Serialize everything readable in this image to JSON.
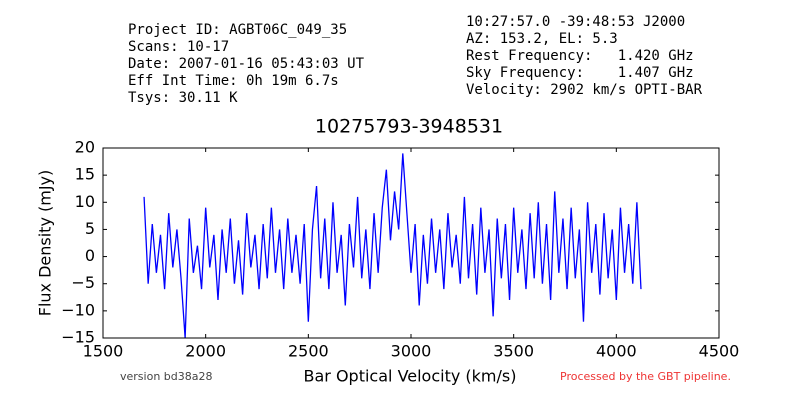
{
  "header": {
    "left": [
      "Project ID: AGBT06C_049_35",
      "Scans: 10-17",
      "Date: 2007-01-16 05:43:03 UT",
      "Eff Int Time: 0h 19m 6.7s",
      "Tsys: 30.11 K"
    ],
    "right": [
      "10:27:57.0 -39:48:53 J2000",
      "AZ: 153.2, EL: 5.3",
      "Rest Frequency:   1.420 GHz",
      "Sky Frequency:    1.407 GHz",
      "Velocity: 2902 km/s OPTI-BAR"
    ]
  },
  "footer": {
    "version": "version bd38a28",
    "processed": "Processed by the GBT pipeline."
  },
  "chart_data": {
    "type": "line",
    "title": "10275793-3948531",
    "x_label": "Bar Optical Velocity (km/s)",
    "y_label": "Flux Density (mJy)",
    "color": "#0000ff",
    "grid": false,
    "xlim": [
      1500,
      4500
    ],
    "xticks": [
      1500,
      2000,
      2500,
      3000,
      3500,
      4000,
      4500
    ],
    "ylim": [
      -15,
      20
    ],
    "yticks": [
      {
        "value": -15,
        "label": "−15"
      },
      {
        "value": -10,
        "label": "−10"
      },
      {
        "value": -5,
        "label": "−5"
      },
      0,
      5,
      10,
      15,
      20
    ],
    "x": [
      1700,
      1720,
      1740,
      1760,
      1780,
      1800,
      1820,
      1840,
      1860,
      1880,
      1900,
      1920,
      1940,
      1960,
      1980,
      2000,
      2020,
      2040,
      2060,
      2080,
      2100,
      2120,
      2140,
      2160,
      2180,
      2200,
      2220,
      2240,
      2260,
      2280,
      2300,
      2320,
      2340,
      2360,
      2380,
      2400,
      2420,
      2440,
      2460,
      2480,
      2500,
      2520,
      2540,
      2560,
      2580,
      2600,
      2620,
      2640,
      2660,
      2680,
      2700,
      2720,
      2740,
      2760,
      2780,
      2800,
      2820,
      2840,
      2860,
      2880,
      2900,
      2920,
      2940,
      2960,
      2980,
      3000,
      3020,
      3040,
      3060,
      3080,
      3100,
      3120,
      3140,
      3160,
      3180,
      3200,
      3220,
      3240,
      3260,
      3280,
      3300,
      3320,
      3340,
      3360,
      3380,
      3400,
      3420,
      3440,
      3460,
      3480,
      3500,
      3520,
      3540,
      3560,
      3580,
      3600,
      3620,
      3640,
      3660,
      3680,
      3700,
      3720,
      3740,
      3760,
      3780,
      3800,
      3820,
      3840,
      3860,
      3880,
      3900,
      3920,
      3940,
      3960,
      3980,
      4000,
      4020,
      4040,
      4060,
      4080,
      4100,
      4120
    ],
    "values": [
      11,
      -5,
      6,
      -3,
      4,
      -6,
      8,
      -2,
      5,
      -4,
      -15,
      7,
      -3,
      2,
      -6,
      9,
      -2,
      4,
      -8,
      5,
      -3,
      7,
      -5,
      3,
      -7,
      8,
      -2,
      4,
      -6,
      6,
      -4,
      9,
      -3,
      5,
      -6,
      7,
      -3,
      4,
      -5,
      6,
      -12,
      5,
      13,
      -4,
      7,
      -6,
      10,
      -3,
      4,
      -9,
      6,
      -2,
      11,
      -4,
      5,
      -6,
      8,
      -3,
      9,
      16,
      3,
      12,
      5,
      19,
      8,
      -3,
      6,
      -9,
      4,
      -5,
      7,
      -3,
      5,
      -6,
      8,
      -2,
      4,
      -5,
      11,
      -4,
      6,
      -7,
      9,
      -3,
      5,
      -11,
      7,
      -4,
      6,
      -8,
      9,
      -3,
      5,
      -6,
      8,
      -4,
      10,
      -5,
      6,
      -8,
      12,
      -3,
      7,
      -6,
      9,
      -4,
      5,
      -12,
      10,
      -3,
      6,
      -7,
      8,
      -4,
      5,
      -8,
      9,
      -3,
      6,
      -5,
      10,
      -6
    ]
  }
}
